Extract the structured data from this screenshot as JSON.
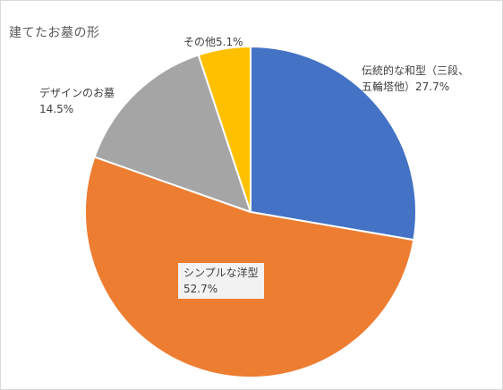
{
  "chart_data": {
    "type": "pie",
    "title": "建てたお墓の形",
    "series": [
      {
        "name": "",
        "slices": [
          {
            "category": "伝統的な和型（三段、五輪塔他）",
            "label_lines": [
              "伝統的な和型（三段、",
              "五輪塔他）27.7%"
            ],
            "value": 27.7,
            "color": "#4472C4"
          },
          {
            "category": "シンプルな洋型",
            "label_lines": [
              "シンプルな洋型",
              "52.7%"
            ],
            "value": 52.7,
            "color": "#ED7D31"
          },
          {
            "category": "デザインのお墓",
            "label_lines": [
              "デザインのお墓",
              "14.5%"
            ],
            "value": 14.5,
            "color": "#A5A5A5"
          },
          {
            "category": "その他",
            "label_lines": [
              "その他5.1%"
            ],
            "value": 5.1,
            "color": "#FFC000"
          }
        ]
      }
    ],
    "start_angle_deg": 0,
    "direction": "clockwise",
    "legend": "none",
    "data_labels": "category-and-percent"
  }
}
